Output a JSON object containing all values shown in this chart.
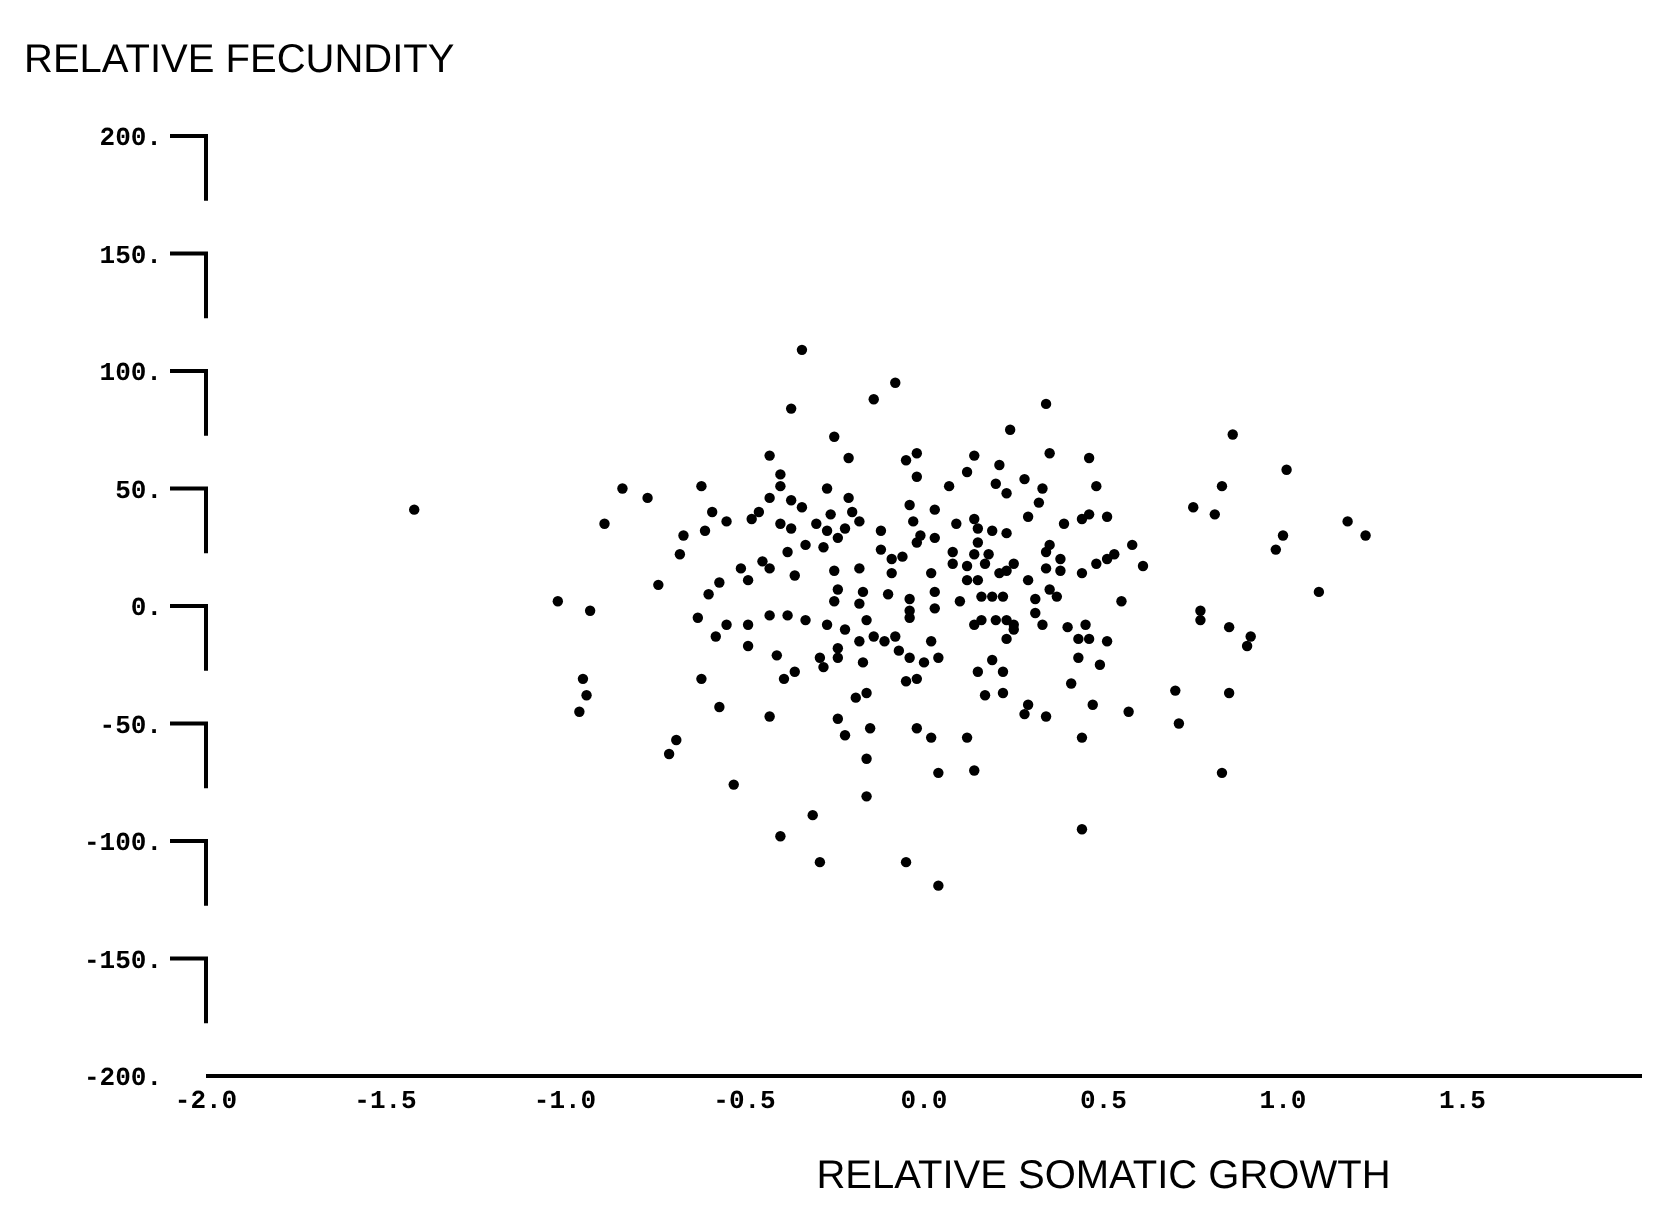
{
  "chart_data": {
    "type": "scatter",
    "ylabel": "RELATIVE FECUNDITY",
    "xlabel": "RELATIVE SOMATIC GROWTH",
    "xlim": [
      -2,
      2
    ],
    "ylim": [
      -200,
      200
    ],
    "xticks": [
      {
        "value": -2,
        "label": "-2.0"
      },
      {
        "value": -1.5,
        "label": "-1.5"
      },
      {
        "value": -1,
        "label": "-1.0"
      },
      {
        "value": -0.5,
        "label": "-0.5"
      },
      {
        "value": 0,
        "label": "0.0"
      },
      {
        "value": 0.5,
        "label": "0.5"
      },
      {
        "value": 1,
        "label": "1.0"
      },
      {
        "value": 1.5,
        "label": "1.5"
      }
    ],
    "yticks": [
      {
        "value": 200,
        "label": "200."
      },
      {
        "value": 150,
        "label": "150."
      },
      {
        "value": 100,
        "label": "100."
      },
      {
        "value": 50,
        "label": "50."
      },
      {
        "value": 0,
        "label": "0."
      },
      {
        "value": -50,
        "label": "-50."
      },
      {
        "value": -100,
        "label": "-100."
      },
      {
        "value": -150,
        "label": "-150."
      },
      {
        "value": -200,
        "label": "-200."
      }
    ],
    "grid": false,
    "marker": "circle",
    "color": "#000000",
    "x": [
      -0.34,
      -0.08,
      -0.14,
      -0.37,
      -0.25,
      -0.21,
      -0.43,
      -0.05,
      -0.02,
      -0.4,
      -0.02,
      -0.4,
      -0.84,
      -0.77,
      -0.62,
      -0.27,
      -0.21,
      -0.43,
      -0.37,
      -0.04,
      -1.42,
      -0.89,
      -0.59,
      -0.55,
      -0.46,
      -0.48,
      -0.34,
      -0.26,
      -0.2,
      -0.18,
      -0.4,
      -0.37,
      -0.3,
      -0.27,
      -0.24,
      -0.22,
      -0.12,
      -0.03,
      -0.67,
      -0.61,
      -0.68,
      -0.33,
      -0.28,
      -0.38,
      -0.12,
      -0.09,
      -0.06,
      -0.02,
      -0.51,
      -0.45,
      -0.43,
      -0.36,
      -0.25,
      -0.18,
      -0.09,
      -0.74,
      -0.49,
      -0.57,
      -0.6,
      -0.24,
      -0.25,
      -0.17,
      -0.18,
      -0.1,
      -0.04,
      -1.02,
      -0.93,
      0.34,
      0.24,
      0.86,
      1.01,
      0.83,
      0.75,
      0.81,
      1.18,
      1.23,
      1.0,
      0.98,
      1.1,
      0.77,
      0.55,
      0.14,
      0.21,
      0.35,
      0.46,
      0.12,
      0.07,
      0.2,
      0.23,
      0.28,
      0.33,
      0.48,
      0.32,
      0.03,
      0.09,
      0.14,
      0.15,
      0.19,
      0.23,
      0.29,
      0.39,
      0.44,
      0.46,
      0.51,
      -0.01,
      0.03,
      0.08,
      0.14,
      0.15,
      0.18,
      0.17,
      0.08,
      0.12,
      0.21,
      0.25,
      0.23,
      0.35,
      0.34,
      0.38,
      0.38,
      0.34,
      0.29,
      0.44,
      0.48,
      0.51,
      0.53,
      0.58,
      0.61,
      0.02,
      0.12,
      0.15,
      0.03,
      0.1,
      0.16,
      0.19,
      0.22,
      0.35,
      0.37,
      0.31,
      -0.04,
      -0.63,
      -0.55,
      -0.49,
      -0.43,
      -0.38,
      -0.33,
      -0.27,
      -0.22,
      -0.16,
      -0.04,
      -0.58,
      -0.49,
      -0.18,
      -0.14,
      -0.11,
      -0.08,
      -0.41,
      -0.24,
      -0.24,
      -0.29,
      -0.28,
      -0.17,
      -0.07,
      -0.04,
      -0.95,
      -0.94,
      -0.96,
      -0.62,
      -0.39,
      -0.36,
      -0.05,
      -0.02,
      -0.19,
      -0.16,
      -0.57,
      -0.43,
      -0.24,
      -0.22,
      -0.15,
      -0.02,
      -0.69,
      -0.71,
      -0.16,
      -0.53,
      -0.16,
      -0.31,
      -0.4,
      -0.29,
      -0.05,
      0.03,
      0.14,
      0.16,
      0.2,
      0.23,
      0.25,
      0.25,
      0.23,
      0.31,
      0.33,
      0.4,
      0.45,
      0.43,
      0.46,
      0.51,
      0.77,
      0.85,
      0.91,
      0.9,
      0.02,
      0.0,
      0.04,
      0.15,
      0.19,
      0.22,
      0.17,
      0.22,
      0.29,
      0.28,
      0.34,
      0.43,
      0.49,
      0.41,
      0.47,
      0.57,
      0.7,
      0.85,
      0.71,
      0.02,
      0.12,
      0.44,
      0.04,
      0.14,
      0.83,
      0.44,
      0.04
    ],
    "values": [
      109,
      95,
      88,
      84,
      72,
      63,
      64,
      62,
      65,
      56,
      55,
      51,
      50,
      46,
      51,
      50,
      46,
      46,
      45,
      43,
      41,
      35,
      40,
      36,
      40,
      37,
      42,
      39,
      40,
      36,
      35,
      33,
      35,
      32,
      29,
      33,
      32,
      36,
      30,
      32,
      22,
      26,
      25,
      23,
      24,
      20,
      21,
      27,
      16,
      19,
      16,
      13,
      15,
      16,
      14,
      9,
      11,
      10,
      5,
      7,
      2,
      6,
      1,
      5,
      3,
      2,
      -2,
      86,
      75,
      73,
      58,
      51,
      42,
      39,
      36,
      30,
      30,
      24,
      6,
      -2,
      2,
      64,
      60,
      65,
      63,
      57,
      51,
      52,
      48,
      54,
      50,
      51,
      44,
      41,
      35,
      37,
      33,
      32,
      31,
      38,
      35,
      37,
      39,
      38,
      30,
      29,
      23,
      22,
      27,
      22,
      18,
      18,
      17,
      14,
      18,
      15,
      26,
      23,
      20,
      15,
      16,
      11,
      14,
      18,
      20,
      22,
      26,
      17,
      14,
      11,
      11,
      6,
      2,
      4,
      4,
      4,
      7,
      4,
      3,
      -2,
      -5,
      -8,
      -8,
      -4,
      -4,
      -6,
      -8,
      -10,
      -6,
      -5,
      -13,
      -17,
      -15,
      -13,
      -15,
      -13,
      -21,
      -18,
      -22,
      -22,
      -26,
      -24,
      -19,
      -22,
      -31,
      -38,
      -45,
      -31,
      -31,
      -28,
      -32,
      -31,
      -39,
      -37,
      -43,
      -47,
      -48,
      -55,
      -52,
      -52,
      -57,
      -63,
      -65,
      -76,
      -81,
      -89,
      -98,
      -109,
      -109,
      -1,
      -8,
      -6,
      -6,
      -6,
      -8,
      -10,
      -14,
      -3,
      -8,
      -9,
      -8,
      -14,
      -14,
      -15,
      -6,
      -9,
      -13,
      -17,
      -15,
      -24,
      -22,
      -28,
      -23,
      -28,
      -38,
      -37,
      -42,
      -46,
      -47,
      -22,
      -25,
      -33,
      -42,
      -45,
      -36,
      -37,
      -50,
      -56,
      -56,
      -56,
      -71,
      -70,
      -71,
      -95,
      -119
    ]
  }
}
